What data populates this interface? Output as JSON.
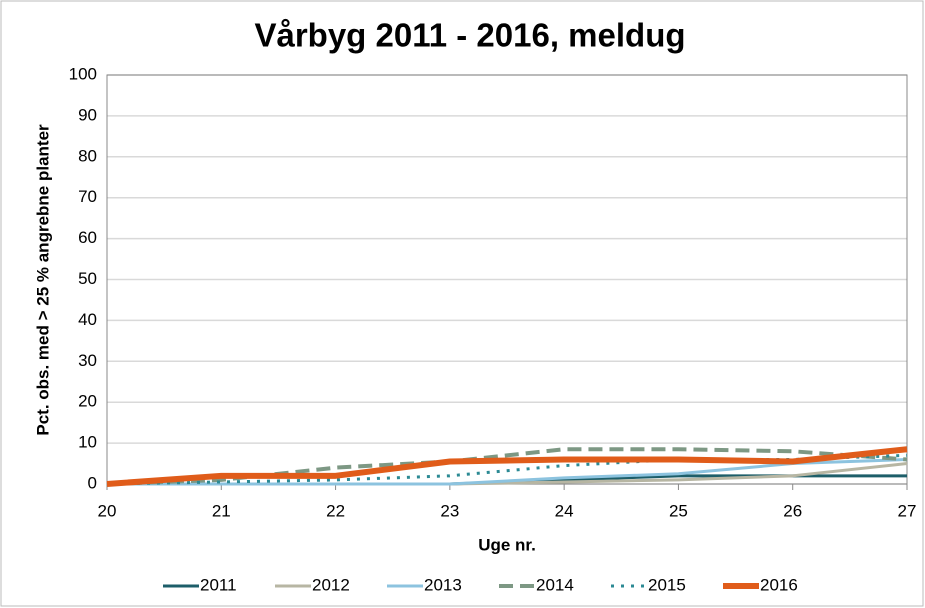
{
  "chart_data": {
    "type": "line",
    "title": "Vårbyg 2011 - 2016, meldug",
    "x_label": "Uge nr.",
    "y_label": "Pct. obs. med > 25 % angrebne planter",
    "x": [
      20,
      21,
      22,
      23,
      24,
      25,
      26,
      27
    ],
    "xlim": [
      20,
      27
    ],
    "xticks": [
      20,
      21,
      22,
      23,
      24,
      25,
      26,
      27
    ],
    "ylim": [
      0,
      100
    ],
    "yticks": [
      0,
      10,
      20,
      30,
      40,
      50,
      60,
      70,
      80,
      90,
      100
    ],
    "grid": true,
    "legend": "bottom",
    "series": [
      {
        "name": "2011",
        "color": "#1d5e69",
        "dash": "solid",
        "width": 3,
        "values": [
          0,
          0,
          0,
          0,
          1,
          2,
          2,
          2
        ]
      },
      {
        "name": "2012",
        "color": "#b7b6a3",
        "dash": "solid",
        "width": 3,
        "values": [
          0,
          0,
          0,
          0,
          0.5,
          1,
          2,
          5
        ]
      },
      {
        "name": "2013",
        "color": "#8cc3df",
        "dash": "solid",
        "width": 3,
        "values": [
          0,
          0,
          0,
          0,
          1.5,
          2.5,
          5,
          6
        ]
      },
      {
        "name": "2014",
        "color": "#7d9884",
        "dash": "dashed",
        "width": 4,
        "values": [
          0,
          1,
          4,
          5.5,
          8.5,
          8.5,
          8,
          6
        ]
      },
      {
        "name": "2015",
        "color": "#2c8a94",
        "dash": "dotted",
        "width": 3,
        "values": [
          0,
          0.5,
          1,
          2,
          4.5,
          6,
          6,
          7
        ]
      },
      {
        "name": "2016",
        "color": "#e05c1a",
        "dash": "solid",
        "width": 6,
        "values": [
          0,
          2,
          2,
          5.5,
          6,
          6,
          5.5,
          8.5
        ]
      }
    ]
  }
}
